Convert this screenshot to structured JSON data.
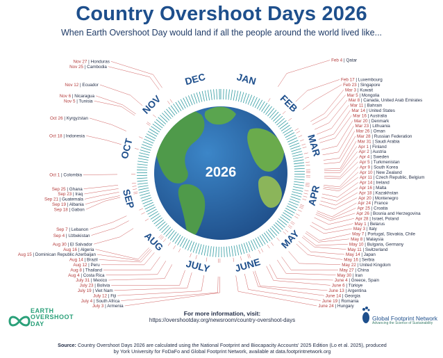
{
  "header": {
    "title": "Country Overshoot Days 2026",
    "subtitle": "When Earth Overshoot Day would land if all the people around the world lived like..."
  },
  "center_year": "2026",
  "months": [
    "JAN",
    "FEB",
    "MAR",
    "APR",
    "MAY",
    "JUNE",
    "JULY",
    "AUG",
    "SEP",
    "OCT",
    "NOV",
    "DEC"
  ],
  "colors": {
    "title": "#1e4f8c",
    "date": "#b33a3a",
    "ocean": "#2f6fb1",
    "land": "#4f9a4a",
    "ring": "#2e9aa0",
    "leader": "#c94b4b"
  },
  "chart_data": {
    "type": "radial-timeline",
    "title": "Country Overshoot Days 2026",
    "year": 2026,
    "entries": [
      {
        "date": "Feb 4",
        "country": "Qatar"
      },
      {
        "date": "Feb 17",
        "country": "Luxembourg"
      },
      {
        "date": "Feb 23",
        "country": "Singapore"
      },
      {
        "date": "Mar 3",
        "country": "Kuwait"
      },
      {
        "date": "Mar 5",
        "country": "Mongolia"
      },
      {
        "date": "Mar 8",
        "country": "Canada, United Arab Emirates"
      },
      {
        "date": "Mar 11",
        "country": "Bahrain"
      },
      {
        "date": "Mar 14",
        "country": "United States"
      },
      {
        "date": "Mar 16",
        "country": "Australia"
      },
      {
        "date": "Mar 20",
        "country": "Denmark"
      },
      {
        "date": "Mar 23",
        "country": "Lithuania"
      },
      {
        "date": "Mar 26",
        "country": "Oman"
      },
      {
        "date": "Mar 28",
        "country": "Russian Federation"
      },
      {
        "date": "Mar 31",
        "country": "Saudi Arabia"
      },
      {
        "date": "Apr 1",
        "country": "Finland"
      },
      {
        "date": "Apr 2",
        "country": "Austria"
      },
      {
        "date": "Apr 4",
        "country": "Sweden"
      },
      {
        "date": "Apr 5",
        "country": "Turkmenistan"
      },
      {
        "date": "Apr 9",
        "country": "South Korea"
      },
      {
        "date": "Apr 10",
        "country": "New Zealand"
      },
      {
        "date": "Apr 11",
        "country": "Czech Republic, Belgium"
      },
      {
        "date": "Apr 14",
        "country": "Ireland"
      },
      {
        "date": "Apr 16",
        "country": "Malta"
      },
      {
        "date": "Apr 18",
        "country": "Kazakhstan"
      },
      {
        "date": "Apr 20",
        "country": "Montenegro"
      },
      {
        "date": "Apr 24",
        "country": "France"
      },
      {
        "date": "Apr 25",
        "country": "Croatia"
      },
      {
        "date": "Apr 26",
        "country": "Bosnia and Herzegovina"
      },
      {
        "date": "Apr 28",
        "country": "Israel, Poland"
      },
      {
        "date": "May 1",
        "country": "Belarus"
      },
      {
        "date": "May 3",
        "country": "Italy"
      },
      {
        "date": "May 7",
        "country": "Portugal, Slovakia, Chile"
      },
      {
        "date": "May 8",
        "country": "Malaysia"
      },
      {
        "date": "May 10",
        "country": "Bulgaria, Germany"
      },
      {
        "date": "May 11",
        "country": "Switzerland"
      },
      {
        "date": "May 14",
        "country": "Japan"
      },
      {
        "date": "May 16",
        "country": "Serbia"
      },
      {
        "date": "May 22",
        "country": "United Kingdom"
      },
      {
        "date": "May 27",
        "country": "China"
      },
      {
        "date": "May 30",
        "country": "Iran"
      },
      {
        "date": "June 4",
        "country": "Greece, Spain"
      },
      {
        "date": "June 6",
        "country": "Türkiye"
      },
      {
        "date": "June 13",
        "country": "Argentina"
      },
      {
        "date": "June 14",
        "country": "Georgia"
      },
      {
        "date": "June 19",
        "country": "Romania"
      },
      {
        "date": "June 24",
        "country": "Hungary"
      },
      {
        "date": "July 3",
        "country": "Armenia"
      },
      {
        "date": "July 4",
        "country": "South Africa"
      },
      {
        "date": "July 12",
        "country": "Fiji"
      },
      {
        "date": "July 19",
        "country": "Viet Nam"
      },
      {
        "date": "July 23",
        "country": "Bolivia"
      },
      {
        "date": "July 31",
        "country": "Mexico"
      },
      {
        "date": "Aug 4",
        "country": "Costa Rica"
      },
      {
        "date": "Aug 8",
        "country": "Thailand"
      },
      {
        "date": "Aug 12",
        "country": "Peru"
      },
      {
        "date": "Aug 14",
        "country": "Brazil"
      },
      {
        "date": "Aug 15",
        "country": "Dominican Republic Azerbaijan"
      },
      {
        "date": "Aug 16",
        "country": "Algeria"
      },
      {
        "date": "Aug 30",
        "country": "El Salvador"
      },
      {
        "date": "Sep 4",
        "country": "Uzbekistan"
      },
      {
        "date": "Sep 7",
        "country": "Lebanon"
      },
      {
        "date": "Sep 18",
        "country": "Gabon"
      },
      {
        "date": "Sep 19",
        "country": "Albania"
      },
      {
        "date": "Sep 21",
        "country": "Guatemala"
      },
      {
        "date": "Sep 23",
        "country": "Iraq"
      },
      {
        "date": "Sep 25",
        "country": "Ghana"
      },
      {
        "date": "Oct 1",
        "country": "Colombia"
      },
      {
        "date": "Oct 18",
        "country": "Indonesia"
      },
      {
        "date": "Oct 26",
        "country": "Kyrgyzstan"
      },
      {
        "date": "Nov 5",
        "country": "Tunisia"
      },
      {
        "date": "Nov 6",
        "country": "Nicaragua"
      },
      {
        "date": "Nov 12",
        "country": "Ecuador"
      },
      {
        "date": "Nov 25",
        "country": "Cambodia"
      },
      {
        "date": "Nov 27",
        "country": "Honduras"
      }
    ]
  },
  "footer": {
    "more_heading": "For more information, visit:",
    "more_url": "https://overshootday.org/newsroom/country-overshoot-days",
    "source_label": "Source:",
    "source_text": "Country Overshoot Days 2026 are calculated using the National Footprint and Biocapacity Accounts' 2025 Edition (Lo et al. 2025), produced by York University for FoDaFo and Global Footprint Network, available at data.footprintnetwork.org",
    "eod_logo": [
      "EARTH",
      "OVERSHOOT",
      "DAY"
    ],
    "gfn_logo": "Global Footprint Network",
    "gfn_tagline": "Advancing the Science of Sustainability"
  }
}
